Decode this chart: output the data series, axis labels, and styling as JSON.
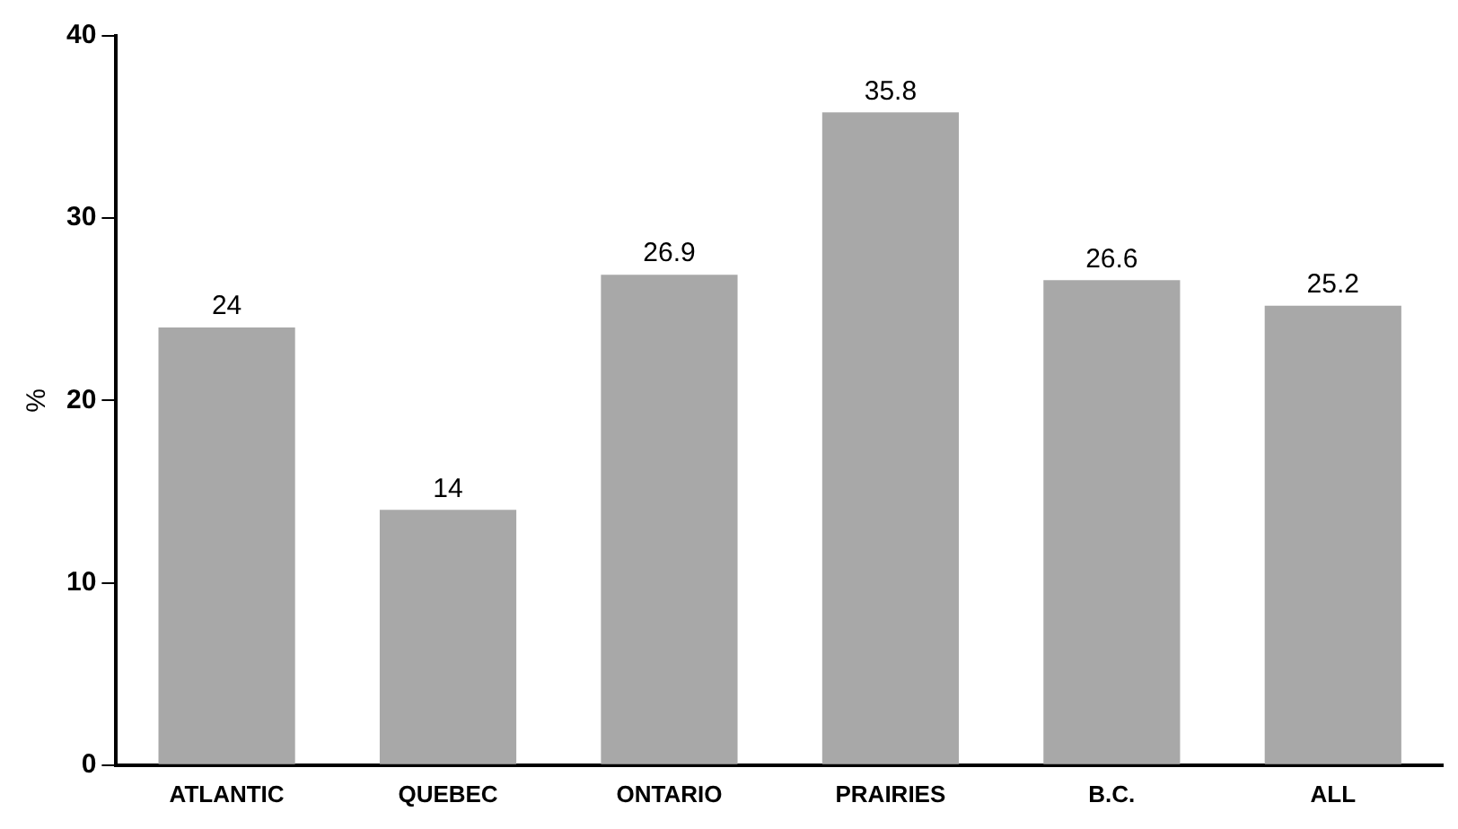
{
  "chart_data": {
    "type": "bar",
    "ylabel": "%",
    "categories": [
      "ATLANTIC",
      "QUEBEC",
      "ONTARIO",
      "PRAIRIES",
      "B.C.",
      "ALL"
    ],
    "values": [
      24,
      14,
      26.9,
      35.8,
      26.6,
      25.2
    ],
    "color": "#a8a8a8",
    "ylim": [
      0,
      40
    ],
    "yticks": [
      0,
      10,
      20,
      30,
      40
    ],
    "grid": false,
    "data_labels": true
  }
}
